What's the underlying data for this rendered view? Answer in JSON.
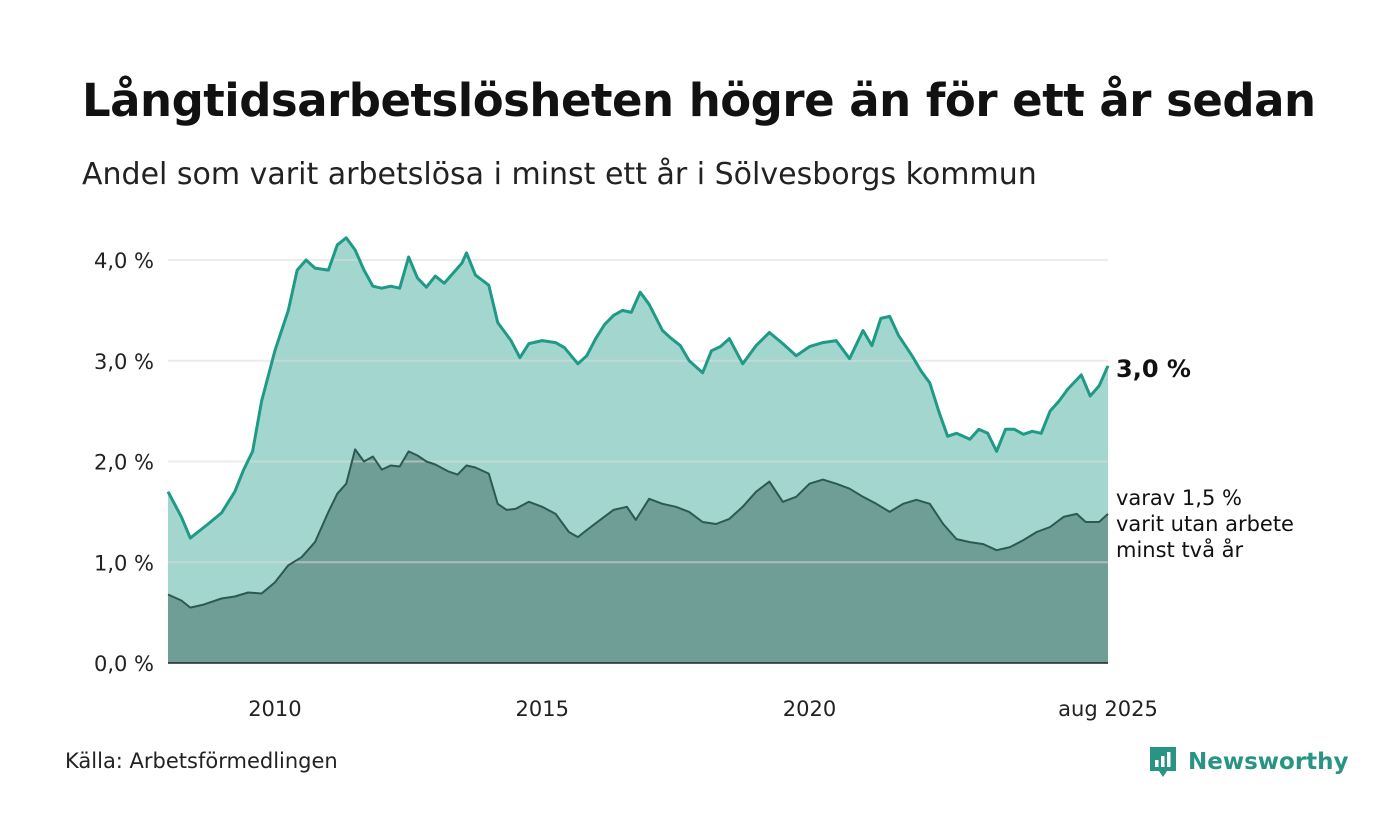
{
  "title": "Långtidsarbetslösheten högre än för ett år sedan",
  "subtitle": "Andel som varit arbetslösa i minst ett år i Sölvesborgs kommun",
  "source": "Källa: Arbetsförmedlingen",
  "brand": "Newsworthy",
  "colors": {
    "series1_line": "#1f9a86",
    "series1_fill": "#a3d6cf",
    "series2_line": "#2c5a52",
    "series2_fill": "#6f9e96",
    "grid": "#dddddd",
    "brand": "#2a9484"
  },
  "chart_data": {
    "type": "area",
    "y_tick_labels": [
      "0,0 %",
      "1,0 %",
      "2,0 %",
      "3,0 %",
      "4,0 %"
    ],
    "y_ticks": [
      0,
      1,
      2,
      3,
      4
    ],
    "ylim": [
      0,
      4.3
    ],
    "x_tick_labels": [
      "2010",
      "2015",
      "2020",
      "aug 2025"
    ],
    "x_ticks": [
      "2010-01",
      "2015-01",
      "2020-01",
      "2025-08"
    ],
    "xlim": [
      "2008-01",
      "2025-08"
    ],
    "grid": true,
    "end_labels": {
      "series1": "3,0 %",
      "series2": [
        "varav 1,5 %",
        "varit utan arbete",
        "minst två år"
      ]
    },
    "series": [
      {
        "key": "series1",
        "values": [
          [
            "2008-01",
            1.7
          ],
          [
            "2008-04",
            1.45
          ],
          [
            "2008-06",
            1.24
          ],
          [
            "2008-08",
            1.31
          ],
          [
            "2008-10",
            1.38
          ],
          [
            "2009-01",
            1.49
          ],
          [
            "2009-04",
            1.7
          ],
          [
            "2009-06",
            1.92
          ],
          [
            "2009-08",
            2.1
          ],
          [
            "2009-10",
            2.6
          ],
          [
            "2010-01",
            3.1
          ],
          [
            "2010-04",
            3.5
          ],
          [
            "2010-06",
            3.9
          ],
          [
            "2010-08",
            4.0
          ],
          [
            "2010-10",
            3.92
          ],
          [
            "2011-01",
            3.9
          ],
          [
            "2011-03",
            4.15
          ],
          [
            "2011-05",
            4.22
          ],
          [
            "2011-07",
            4.1
          ],
          [
            "2011-09",
            3.9
          ],
          [
            "2011-11",
            3.74
          ],
          [
            "2012-01",
            3.72
          ],
          [
            "2012-03",
            3.74
          ],
          [
            "2012-05",
            3.72
          ],
          [
            "2012-07",
            4.03
          ],
          [
            "2012-09",
            3.82
          ],
          [
            "2012-11",
            3.73
          ],
          [
            "2013-01",
            3.84
          ],
          [
            "2013-03",
            3.77
          ],
          [
            "2013-05",
            3.87
          ],
          [
            "2013-07",
            3.97
          ],
          [
            "2013-08",
            4.07
          ],
          [
            "2013-10",
            3.85
          ],
          [
            "2014-01",
            3.75
          ],
          [
            "2014-03",
            3.38
          ],
          [
            "2014-06",
            3.2
          ],
          [
            "2014-08",
            3.03
          ],
          [
            "2014-10",
            3.17
          ],
          [
            "2015-01",
            3.2
          ],
          [
            "2015-04",
            3.18
          ],
          [
            "2015-06",
            3.13
          ],
          [
            "2015-09",
            2.97
          ],
          [
            "2015-11",
            3.05
          ],
          [
            "2016-01",
            3.22
          ],
          [
            "2016-03",
            3.36
          ],
          [
            "2016-05",
            3.45
          ],
          [
            "2016-07",
            3.5
          ],
          [
            "2016-09",
            3.48
          ],
          [
            "2016-11",
            3.68
          ],
          [
            "2017-01",
            3.56
          ],
          [
            "2017-04",
            3.3
          ],
          [
            "2017-06",
            3.22
          ],
          [
            "2017-08",
            3.15
          ],
          [
            "2017-10",
            3.0
          ],
          [
            "2018-01",
            2.88
          ],
          [
            "2018-03",
            3.1
          ],
          [
            "2018-05",
            3.14
          ],
          [
            "2018-07",
            3.22
          ],
          [
            "2018-10",
            2.97
          ],
          [
            "2019-01",
            3.15
          ],
          [
            "2019-04",
            3.28
          ],
          [
            "2019-07",
            3.17
          ],
          [
            "2019-10",
            3.05
          ],
          [
            "2020-01",
            3.14
          ],
          [
            "2020-04",
            3.18
          ],
          [
            "2020-07",
            3.2
          ],
          [
            "2020-10",
            3.02
          ],
          [
            "2021-01",
            3.3
          ],
          [
            "2021-03",
            3.15
          ],
          [
            "2021-05",
            3.42
          ],
          [
            "2021-07",
            3.44
          ],
          [
            "2021-09",
            3.25
          ],
          [
            "2021-12",
            3.05
          ],
          [
            "2022-02",
            2.9
          ],
          [
            "2022-04",
            2.78
          ],
          [
            "2022-06",
            2.5
          ],
          [
            "2022-08",
            2.25
          ],
          [
            "2022-10",
            2.28
          ],
          [
            "2023-01",
            2.22
          ],
          [
            "2023-03",
            2.32
          ],
          [
            "2023-05",
            2.28
          ],
          [
            "2023-07",
            2.1
          ],
          [
            "2023-09",
            2.32
          ],
          [
            "2023-11",
            2.32
          ],
          [
            "2024-01",
            2.27
          ],
          [
            "2024-03",
            2.3
          ],
          [
            "2024-05",
            2.28
          ],
          [
            "2024-07",
            2.5
          ],
          [
            "2024-09",
            2.6
          ],
          [
            "2024-11",
            2.72
          ],
          [
            "2025-02",
            2.86
          ],
          [
            "2025-04",
            2.65
          ],
          [
            "2025-06",
            2.75
          ],
          [
            "2025-08",
            2.95
          ]
        ]
      },
      {
        "key": "series2",
        "values": [
          [
            "2008-01",
            0.68
          ],
          [
            "2008-04",
            0.62
          ],
          [
            "2008-06",
            0.55
          ],
          [
            "2008-09",
            0.58
          ],
          [
            "2009-01",
            0.64
          ],
          [
            "2009-04",
            0.66
          ],
          [
            "2009-07",
            0.7
          ],
          [
            "2009-10",
            0.69
          ],
          [
            "2010-01",
            0.8
          ],
          [
            "2010-04",
            0.97
          ],
          [
            "2010-07",
            1.05
          ],
          [
            "2010-10",
            1.2
          ],
          [
            "2011-01",
            1.5
          ],
          [
            "2011-03",
            1.68
          ],
          [
            "2011-05",
            1.78
          ],
          [
            "2011-07",
            2.12
          ],
          [
            "2011-09",
            2.0
          ],
          [
            "2011-11",
            2.05
          ],
          [
            "2012-01",
            1.92
          ],
          [
            "2012-03",
            1.96
          ],
          [
            "2012-05",
            1.95
          ],
          [
            "2012-07",
            2.1
          ],
          [
            "2012-09",
            2.06
          ],
          [
            "2012-11",
            2.0
          ],
          [
            "2013-01",
            1.97
          ],
          [
            "2013-04",
            1.9
          ],
          [
            "2013-06",
            1.87
          ],
          [
            "2013-08",
            1.96
          ],
          [
            "2013-10",
            1.94
          ],
          [
            "2014-01",
            1.88
          ],
          [
            "2014-03",
            1.58
          ],
          [
            "2014-05",
            1.52
          ],
          [
            "2014-07",
            1.53
          ],
          [
            "2014-10",
            1.6
          ],
          [
            "2015-01",
            1.55
          ],
          [
            "2015-04",
            1.48
          ],
          [
            "2015-07",
            1.3
          ],
          [
            "2015-09",
            1.25
          ],
          [
            "2015-11",
            1.32
          ],
          [
            "2016-02",
            1.42
          ],
          [
            "2016-05",
            1.52
          ],
          [
            "2016-08",
            1.55
          ],
          [
            "2016-10",
            1.42
          ],
          [
            "2017-01",
            1.63
          ],
          [
            "2017-04",
            1.58
          ],
          [
            "2017-07",
            1.55
          ],
          [
            "2017-10",
            1.5
          ],
          [
            "2018-01",
            1.4
          ],
          [
            "2018-04",
            1.38
          ],
          [
            "2018-07",
            1.43
          ],
          [
            "2018-10",
            1.55
          ],
          [
            "2019-01",
            1.7
          ],
          [
            "2019-04",
            1.8
          ],
          [
            "2019-07",
            1.6
          ],
          [
            "2019-10",
            1.65
          ],
          [
            "2020-01",
            1.78
          ],
          [
            "2020-04",
            1.82
          ],
          [
            "2020-07",
            1.78
          ],
          [
            "2020-10",
            1.73
          ],
          [
            "2021-01",
            1.65
          ],
          [
            "2021-04",
            1.58
          ],
          [
            "2021-07",
            1.5
          ],
          [
            "2021-10",
            1.58
          ],
          [
            "2022-01",
            1.62
          ],
          [
            "2022-04",
            1.58
          ],
          [
            "2022-07",
            1.38
          ],
          [
            "2022-10",
            1.23
          ],
          [
            "2023-01",
            1.2
          ],
          [
            "2023-04",
            1.18
          ],
          [
            "2023-07",
            1.12
          ],
          [
            "2023-10",
            1.15
          ],
          [
            "2024-01",
            1.22
          ],
          [
            "2024-04",
            1.3
          ],
          [
            "2024-07",
            1.35
          ],
          [
            "2024-10",
            1.45
          ],
          [
            "2025-01",
            1.48
          ],
          [
            "2025-03",
            1.4
          ],
          [
            "2025-06",
            1.4
          ],
          [
            "2025-08",
            1.48
          ]
        ]
      }
    ]
  }
}
